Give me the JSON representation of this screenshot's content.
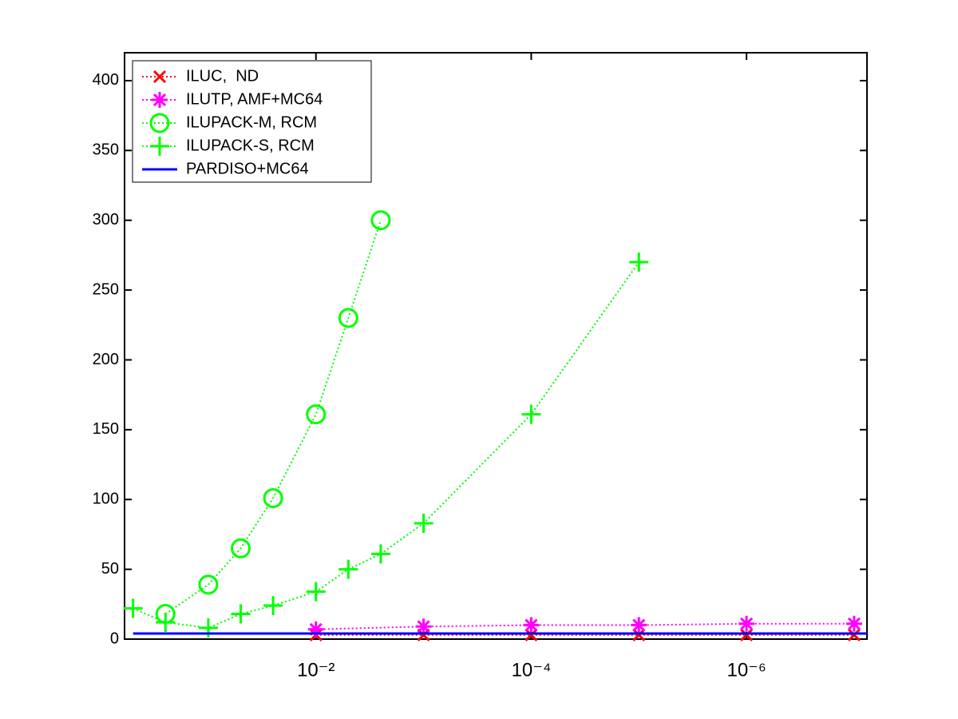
{
  "chart_data": {
    "type": "line",
    "xscale": "log",
    "xlim": [
      0.6,
      7.6e-08
    ],
    "ylim": [
      0,
      420
    ],
    "xticks": [
      {
        "value": 0.01,
        "label": "10⁻²"
      },
      {
        "value": 0.0001,
        "label": "10⁻⁴"
      },
      {
        "value": 1e-06,
        "label": "10⁻⁶"
      }
    ],
    "yticks": [
      0,
      50,
      100,
      150,
      200,
      250,
      300,
      350,
      400
    ],
    "grid": false,
    "legend": "upper left",
    "series": [
      {
        "name": "ILUC,  ND",
        "color": "#ff0000",
        "marker": "x",
        "linestyle": "dotted",
        "x": [
          0.01,
          0.001,
          0.0001,
          1e-05,
          1e-06,
          1e-07
        ],
        "values": [
          3,
          3,
          3,
          3,
          3,
          3
        ]
      },
      {
        "name": "ILUTP, AMF+MC64",
        "color": "#ff00ff",
        "marker": "star",
        "linestyle": "dotted",
        "x": [
          0.01,
          0.001,
          0.0001,
          1e-05,
          1e-06,
          1e-07
        ],
        "values": [
          7,
          9,
          10,
          10,
          11,
          11
        ]
      },
      {
        "name": "ILUPACK-M, RCM",
        "color": "#00ff00",
        "marker": "circle",
        "linestyle": "dotted",
        "x": [
          0.25,
          0.1,
          0.05,
          0.025,
          0.01,
          0.005,
          0.0025
        ],
        "values": [
          18,
          39,
          65,
          101,
          161,
          230,
          300
        ]
      },
      {
        "name": "ILUPACK-S, RCM",
        "color": "#00ff00",
        "marker": "plus",
        "linestyle": "dotted",
        "x": [
          0.5,
          0.25,
          0.1,
          0.05,
          0.025,
          0.01,
          0.005,
          0.0025,
          0.001,
          0.0001,
          1e-05
        ],
        "values": [
          22,
          12,
          8,
          18,
          24,
          34,
          50,
          61,
          83,
          161,
          270
        ]
      },
      {
        "name": "PARDISO+MC64",
        "color": "#0000ff",
        "marker": "none",
        "linestyle": "solid",
        "x": [
          0.5,
          7.6e-08
        ],
        "values": [
          4,
          4
        ]
      }
    ]
  }
}
